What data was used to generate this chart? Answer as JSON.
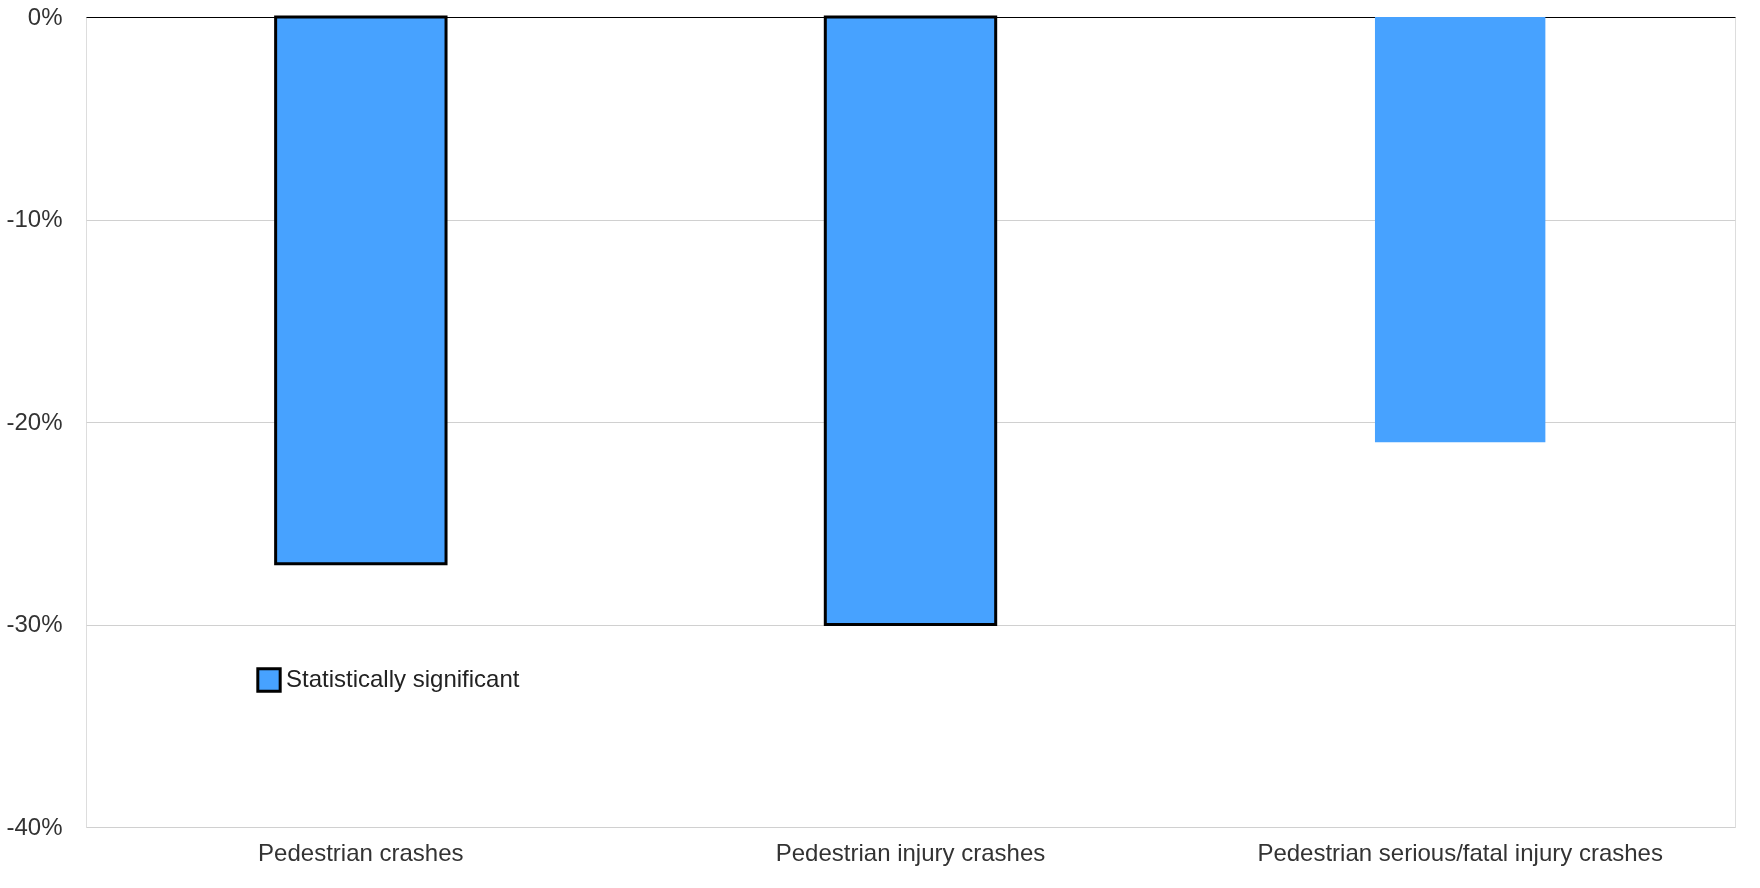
{
  "chart_data": {
    "type": "bar",
    "categories": [
      "Pedestrian crashes",
      "Pedestrian injury crashes",
      "Pedestrian serious/fatal injury crashes"
    ],
    "series": [
      {
        "name": "Statistically significant",
        "color": "#47a2ff",
        "values": [
          -27,
          -30,
          null
        ]
      },
      {
        "color": "#47a2ff",
        "values": [
          null,
          null,
          -21
        ]
      }
    ],
    "ylim": [
      -40,
      0
    ],
    "yticks": [
      {
        "value": 0,
        "label": "0%"
      },
      {
        "value": -10,
        "label": "-10%"
      },
      {
        "value": -20,
        "label": "-20%"
      },
      {
        "value": -30,
        "label": "-30%"
      },
      {
        "value": -40,
        "label": "-40%"
      }
    ],
    "grid": "y",
    "legend": "bottom left"
  }
}
